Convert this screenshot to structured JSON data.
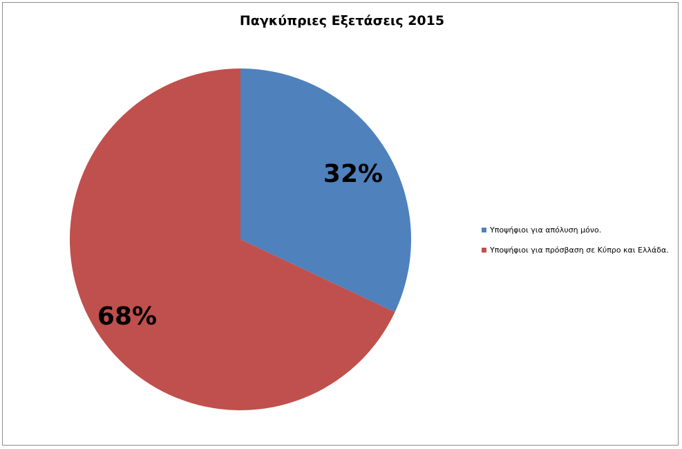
{
  "chart_data": {
    "type": "pie",
    "title": "Παγκύπριες Εξετάσεις 2015",
    "slices": [
      {
        "label": "Υποψήφιοι για απόλυση μόνο.",
        "value": 32,
        "display": "32%",
        "color": "#4f81bd"
      },
      {
        "label": "Υποψήφιοι για πρόσβαση σε Κύπρο και Ελλάδα.",
        "value": 68,
        "display": "68%",
        "color": "#c0504d"
      }
    ],
    "legend_position": "right",
    "start_angle_deg": 0,
    "direction": "clockwise"
  }
}
